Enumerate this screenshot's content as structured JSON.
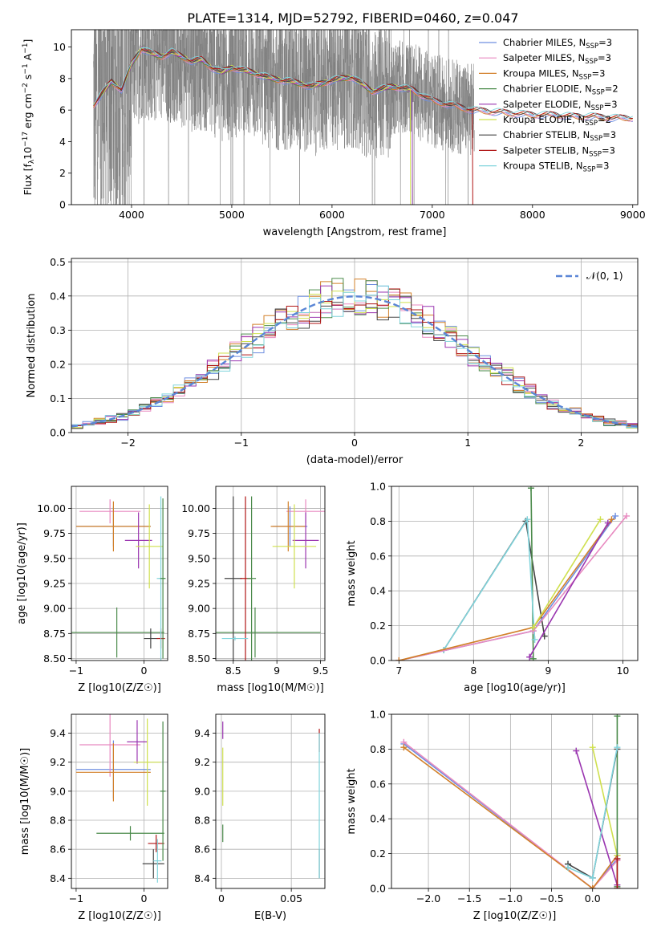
{
  "figure_title": "PLATE=1314, MJD=52792, FIBERID=0460, z=0.047",
  "colors": {
    "chabrier_miles": "#6f8fe0",
    "salpeter_miles": "#e88ac0",
    "kroupa_miles": "#d2802a",
    "chabrier_elodie": "#4a8a4a",
    "salpeter_elodie": "#9a35b0",
    "kroupa_elodie": "#cfe04e",
    "chabrier_stelib": "#444444",
    "salpeter_stelib": "#b01515",
    "kroupa_stelib": "#80d4dc",
    "data_spectrum": "#808080",
    "gaussian": "#5b86d6"
  },
  "legend": [
    {
      "key": "chabrier_miles",
      "base": "Chabrier MILES, N",
      "sub": "SSP",
      "tail": "=3"
    },
    {
      "key": "salpeter_miles",
      "base": "Salpeter MILES, N",
      "sub": "SSP",
      "tail": "=3"
    },
    {
      "key": "kroupa_miles",
      "base": "Kroupa MILES, N",
      "sub": "SSP",
      "tail": "=3"
    },
    {
      "key": "chabrier_elodie",
      "base": "Chabrier ELODIE, N",
      "sub": "SSP",
      "tail": "=2"
    },
    {
      "key": "salpeter_elodie",
      "base": "Salpeter ELODIE, N",
      "sub": "SSP",
      "tail": "=3"
    },
    {
      "key": "kroupa_elodie",
      "base": "Kroupa ELODIE, N",
      "sub": "SSP",
      "tail": "=2"
    },
    {
      "key": "chabrier_stelib",
      "base": "Chabrier STELIB, N",
      "sub": "SSP",
      "tail": "=3"
    },
    {
      "key": "salpeter_stelib",
      "base": "Salpeter STELIB, N",
      "sub": "SSP",
      "tail": "=3"
    },
    {
      "key": "kroupa_stelib",
      "base": "Kroupa STELIB, N",
      "sub": "SSP",
      "tail": "=3"
    }
  ],
  "chart_data": [
    {
      "id": "spectrum",
      "type": "line",
      "xlabel": "wavelength [Angstrom, rest frame]",
      "ylabel_parts": [
        "Flux [f",
        "λ",
        "10",
        "−17",
        " erg cm",
        "−2",
        " s",
        "−1",
        " A",
        "−1",
        "]"
      ],
      "xlim": [
        3400,
        9050
      ],
      "ylim": [
        0,
        11.1
      ],
      "xticks": [
        4000,
        5000,
        6000,
        7000,
        8000,
        9000
      ],
      "yticks": [
        0,
        2,
        4,
        6,
        8,
        10
      ],
      "data_range": [
        3620,
        7420
      ],
      "model_continuum": {
        "x": [
          3620,
          3700,
          3800,
          3900,
          4000,
          4100,
          4200,
          4300,
          4400,
          4500,
          4600,
          4700,
          4800,
          4900,
          5000,
          5200,
          5400,
          5600,
          5800,
          6000,
          6200,
          6400,
          6600,
          6800,
          7000,
          7200,
          7400,
          7600,
          7800,
          8000,
          8200,
          8400,
          8600,
          8800,
          9000
        ],
        "y": [
          6.3,
          7.0,
          7.8,
          7.3,
          8.9,
          9.9,
          9.6,
          9.4,
          9.7,
          9.4,
          9.1,
          9.2,
          8.7,
          8.4,
          8.7,
          8.4,
          8.0,
          7.8,
          7.5,
          7.9,
          8.1,
          7.2,
          7.5,
          7.3,
          6.6,
          6.3,
          6.0,
          5.9,
          5.8,
          5.7,
          5.7,
          5.6,
          5.6,
          5.5,
          5.5
        ]
      }
    },
    {
      "id": "residuals",
      "type": "line",
      "xlabel": "(data-model)/error",
      "ylabel": "Normed distribution",
      "xlim": [
        -2.5,
        2.5
      ],
      "ylim": [
        0,
        0.51
      ],
      "xticks": [
        -2,
        -1,
        0,
        1,
        2
      ],
      "yticks": [
        0,
        0.1,
        0.2,
        0.3,
        0.4,
        0.5
      ],
      "legend_label": "𝒩(0, 1)",
      "gaussian": {
        "mean": 0,
        "sigma": 1
      }
    },
    {
      "id": "age_vs_Z",
      "type": "scatter",
      "xlabel": "Z [log10(Z/Z☉)]",
      "ylabel": "age  [log10(age/yr)]",
      "xlim": [
        -1.07,
        0.35
      ],
      "ylim": [
        8.48,
        10.22
      ],
      "xticks": [
        -1,
        0
      ],
      "yticks": [
        8.5,
        8.75,
        9.0,
        9.25,
        9.5,
        9.75,
        10.0
      ],
      "points": [
        {
          "k": "chabrier_miles",
          "x": -0.45,
          "xerr": 0.55,
          "y": 9.82,
          "yerr": 0.2
        },
        {
          "k": "salpeter_miles",
          "x": -0.5,
          "xerr": 0.45,
          "y": 9.97,
          "yerr": 0.12
        },
        {
          "k": "kroupa_miles",
          "x": -0.45,
          "xerr": 0.55,
          "y": 9.82,
          "yerr": 0.25
        },
        {
          "k": "chabrier_elodie",
          "x": -0.4,
          "xerr": 0.7,
          "y": 8.76,
          "yerr": 0.25
        },
        {
          "k": "salpeter_elodie",
          "x": -0.08,
          "xerr": 0.2,
          "y": 9.68,
          "yerr": 0.28
        },
        {
          "k": "kroupa_elodie",
          "x": 0.08,
          "xerr": 0.2,
          "y": 9.62,
          "yerr": 0.42
        },
        {
          "k": "chabrier_stelib",
          "x": 0.1,
          "xerr": 0.1,
          "y": 8.7,
          "yerr": 0.1
        },
        {
          "k": "salpeter_stelib",
          "x": 0.25,
          "xerr": 0.06,
          "y": 8.7,
          "yerr": 0.1
        },
        {
          "k": "kroupa_stelib",
          "x": 0.25,
          "xerr": 0.06,
          "y": 9.3,
          "yerr": 0.82
        },
        {
          "k": "chabrier_elodie",
          "x": 0.28,
          "xerr": 0.04,
          "y": 9.3,
          "yerr": 0.8
        }
      ]
    },
    {
      "id": "age_vs_mass",
      "type": "scatter",
      "xlabel": "mass [log10(M/M☉)]",
      "ylabel": "",
      "xlim": [
        8.3,
        9.55
      ],
      "ylim": [
        8.48,
        10.22
      ],
      "xticks": [
        8.5,
        9.0,
        9.5
      ],
      "yticks": [
        8.5,
        8.75,
        9.0,
        9.25,
        9.5,
        9.75,
        10.0
      ],
      "points": [
        {
          "k": "chabrier_miles",
          "x": 9.15,
          "xerr": 0.2,
          "y": 9.82,
          "yerr": 0.2
        },
        {
          "k": "salpeter_miles",
          "x": 9.33,
          "xerr": 0.22,
          "y": 9.97,
          "yerr": 0.12
        },
        {
          "k": "kroupa_miles",
          "x": 9.13,
          "xerr": 0.2,
          "y": 9.82,
          "yerr": 0.25
        },
        {
          "k": "chabrier_elodie",
          "x": 8.75,
          "xerr": 0.75,
          "y": 8.76,
          "yerr": 0.25
        },
        {
          "k": "salpeter_elodie",
          "x": 9.33,
          "xerr": 0.15,
          "y": 9.68,
          "yerr": 0.28
        },
        {
          "k": "kroupa_elodie",
          "x": 9.2,
          "xerr": 0.25,
          "y": 9.62,
          "yerr": 0.42
        },
        {
          "k": "chabrier_stelib",
          "x": 8.5,
          "xerr": 0.1,
          "y": 9.3,
          "yerr": 0.82
        },
        {
          "k": "salpeter_stelib",
          "x": 8.64,
          "xerr": 0.06,
          "y": 9.3,
          "yerr": 0.82
        },
        {
          "k": "kroupa_stelib",
          "x": 8.52,
          "xerr": 0.15,
          "y": 8.7,
          "yerr": 0.02
        },
        {
          "k": "chabrier_elodie",
          "x": 8.71,
          "xerr": 0.05,
          "y": 9.3,
          "yerr": 0.82
        }
      ]
    },
    {
      "id": "weight_vs_age",
      "type": "line",
      "xlabel": "age  [log10(age/yr)]",
      "ylabel": "mass weight",
      "xlim": [
        6.9,
        10.2
      ],
      "ylim": [
        0,
        1
      ],
      "xticks": [
        7,
        8,
        9,
        10
      ],
      "yticks": [
        0,
        0.2,
        0.4,
        0.6,
        0.8,
        1.0
      ],
      "series": [
        {
          "k": "chabrier_stelib",
          "x": [
            7.6,
            8.7,
            8.95
          ],
          "y": [
            0.06,
            0.8,
            0.14
          ]
        },
        {
          "k": "chabrier_elodie",
          "x": [
            8.77,
            8.8
          ],
          "y": [
            0.99,
            0.01
          ]
        },
        {
          "k": "kroupa_stelib",
          "x": [
            7.6,
            8.72,
            8.82
          ],
          "y": [
            0.06,
            0.81,
            0.12
          ]
        },
        {
          "k": "chabrier_miles",
          "x": [
            7.0,
            8.8,
            9.9
          ],
          "y": [
            0.0,
            0.17,
            0.83
          ]
        },
        {
          "k": "salpeter_miles",
          "x": [
            7.0,
            8.8,
            10.05
          ],
          "y": [
            0.0,
            0.17,
            0.83
          ]
        },
        {
          "k": "kroupa_miles",
          "x": [
            7.0,
            8.8,
            9.85
          ],
          "y": [
            0.0,
            0.19,
            0.81
          ]
        },
        {
          "k": "kroupa_elodie",
          "x": [
            8.8,
            9.7
          ],
          "y": [
            0.19,
            0.81
          ]
        },
        {
          "k": "salpeter_elodie",
          "x": [
            8.75,
            9.8
          ],
          "y": [
            0.02,
            0.79
          ]
        }
      ]
    },
    {
      "id": "mass_vs_Z",
      "type": "scatter",
      "xlabel": "Z [log10(Z/Z☉)]",
      "ylabel": "mass [log10(M/M☉)]",
      "xlim": [
        -1.07,
        0.35
      ],
      "ylim": [
        8.33,
        9.53
      ],
      "xticks": [
        -1,
        0
      ],
      "yticks": [
        8.4,
        8.6,
        8.8,
        9.0,
        9.2,
        9.4
      ],
      "points": [
        {
          "k": "chabrier_miles",
          "x": -0.45,
          "xerr": 0.55,
          "y": 9.15,
          "yerr": 0.2
        },
        {
          "k": "salpeter_miles",
          "x": -0.5,
          "xerr": 0.45,
          "y": 9.32,
          "yerr": 0.22
        },
        {
          "k": "kroupa_miles",
          "x": -0.45,
          "xerr": 0.55,
          "y": 9.13,
          "yerr": 0.2
        },
        {
          "k": "chabrier_elodie",
          "x": -0.2,
          "xerr": 0.5,
          "y": 8.71,
          "yerr": 0.05
        },
        {
          "k": "salpeter_elodie",
          "x": -0.1,
          "xerr": 0.15,
          "y": 9.34,
          "yerr": 0.15
        },
        {
          "k": "kroupa_elodie",
          "x": 0.05,
          "xerr": 0.2,
          "y": 9.2,
          "yerr": 0.3
        },
        {
          "k": "chabrier_stelib",
          "x": 0.14,
          "xerr": 0.16,
          "y": 8.5,
          "yerr": 0.1
        },
        {
          "k": "salpeter_stelib",
          "x": 0.18,
          "xerr": 0.12,
          "y": 8.64,
          "yerr": 0.06
        },
        {
          "k": "kroupa_stelib",
          "x": 0.2,
          "xerr": 0.06,
          "y": 8.52,
          "yerr": 0.15
        },
        {
          "k": "chabrier_elodie",
          "x": 0.28,
          "xerr": 0.04,
          "y": 9.0,
          "yerr": 0.48
        }
      ]
    },
    {
      "id": "mass_vs_ebv",
      "type": "scatter",
      "xlabel": "E(B-V)",
      "ylabel": "",
      "xlim": [
        -0.004,
        0.074
      ],
      "ylim": [
        8.33,
        9.53
      ],
      "xticks": [
        0.0,
        0.05
      ],
      "yticks": [
        8.4,
        8.6,
        8.8,
        9.0,
        9.2,
        9.4
      ],
      "points": [
        {
          "k": "salpeter_elodie",
          "x": 0.001,
          "xerr": 0,
          "y": 9.42,
          "yerr": 0.06
        },
        {
          "k": "kroupa_elodie",
          "x": 0.001,
          "xerr": 0,
          "y": 9.1,
          "yerr": 0.2
        },
        {
          "k": "chabrier_elodie",
          "x": 0.001,
          "xerr": 0,
          "y": 8.71,
          "yerr": 0.06
        },
        {
          "k": "salpeter_stelib",
          "x": 0.07,
          "xerr": 0,
          "y": 9.35,
          "yerr": 0.08
        },
        {
          "k": "chabrier_stelib",
          "x": 0.07,
          "xerr": 0,
          "y": 8.5,
          "yerr": 0.1
        },
        {
          "k": "kroupa_stelib",
          "x": 0.07,
          "xerr": 0,
          "y": 8.9,
          "yerr": 0.5
        }
      ]
    },
    {
      "id": "weight_vs_Z",
      "type": "line",
      "xlabel": "Z [log10(Z/Z☉)]",
      "ylabel": "mass weight",
      "xlim": [
        -2.45,
        0.55
      ],
      "ylim": [
        0,
        1
      ],
      "xticks": [
        -2.0,
        -1.5,
        -1.0,
        -0.5,
        0.0
      ],
      "yticks": [
        0,
        0.2,
        0.4,
        0.6,
        0.8,
        1.0
      ],
      "series": [
        {
          "k": "chabrier_miles",
          "x": [
            -2.3,
            0.0,
            0.3
          ],
          "y": [
            0.83,
            0.0,
            0.17
          ]
        },
        {
          "k": "salpeter_miles",
          "x": [
            -2.3,
            0.0,
            0.3
          ],
          "y": [
            0.84,
            0.0,
            0.16
          ]
        },
        {
          "k": "kroupa_miles",
          "x": [
            -2.3,
            0.0,
            0.3
          ],
          "y": [
            0.81,
            0.0,
            0.19
          ]
        },
        {
          "k": "salpeter_elodie",
          "x": [
            -0.2,
            0.3
          ],
          "y": [
            0.79,
            0.02
          ]
        },
        {
          "k": "kroupa_elodie",
          "x": [
            0.0,
            0.3
          ],
          "y": [
            0.81,
            0.19
          ]
        },
        {
          "k": "chabrier_elodie",
          "x": [
            0.3,
            0.3
          ],
          "y": [
            0.99,
            0.01
          ]
        },
        {
          "k": "chabrier_stelib",
          "x": [
            -0.3,
            0.0,
            0.3
          ],
          "y": [
            0.14,
            0.06,
            0.8
          ]
        },
        {
          "k": "kroupa_stelib",
          "x": [
            -0.3,
            0.0,
            0.3
          ],
          "y": [
            0.12,
            0.06,
            0.81
          ]
        },
        {
          "k": "salpeter_stelib",
          "x": [
            0.3,
            0.3
          ],
          "y": [
            0.17,
            0.0
          ]
        }
      ]
    }
  ]
}
